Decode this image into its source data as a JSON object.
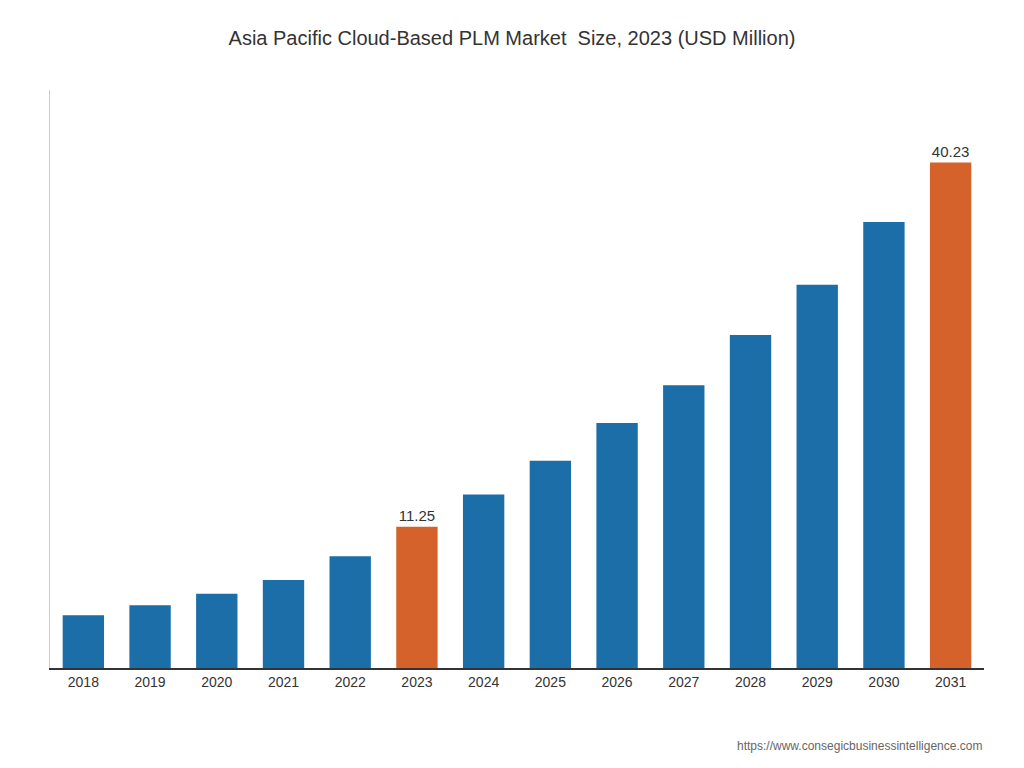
{
  "chart_data": {
    "type": "bar",
    "title": "Asia Pacific Cloud-Based PLM Market  Size, 2023 (USD Million)",
    "categories": [
      "2018",
      "2019",
      "2020",
      "2021",
      "2022",
      "2023",
      "2024",
      "2025",
      "2026",
      "2027",
      "2028",
      "2029",
      "2030",
      "2031"
    ],
    "values": [
      4.2,
      5.0,
      5.9,
      7.0,
      8.9,
      11.25,
      13.8,
      16.5,
      19.5,
      22.5,
      26.5,
      30.5,
      35.5,
      40.23
    ],
    "value_labels": [
      null,
      null,
      null,
      null,
      null,
      "11.25",
      null,
      null,
      null,
      null,
      null,
      null,
      null,
      "40.23"
    ],
    "data_labels": true,
    "colors": [
      "#1b6ea8",
      "#1b6ea8",
      "#1b6ea8",
      "#1b6ea8",
      "#1b6ea8",
      "#d4622a",
      "#1b6ea8",
      "#1b6ea8",
      "#1b6ea8",
      "#1b6ea8",
      "#1b6ea8",
      "#1b6ea8",
      "#1b6ea8",
      "#d4622a"
    ],
    "ylim": [
      0,
      46
    ],
    "tick_labels": "x",
    "grid": false,
    "annotations": [
      "https://www.consegicbusinessintelligence.com"
    ]
  }
}
